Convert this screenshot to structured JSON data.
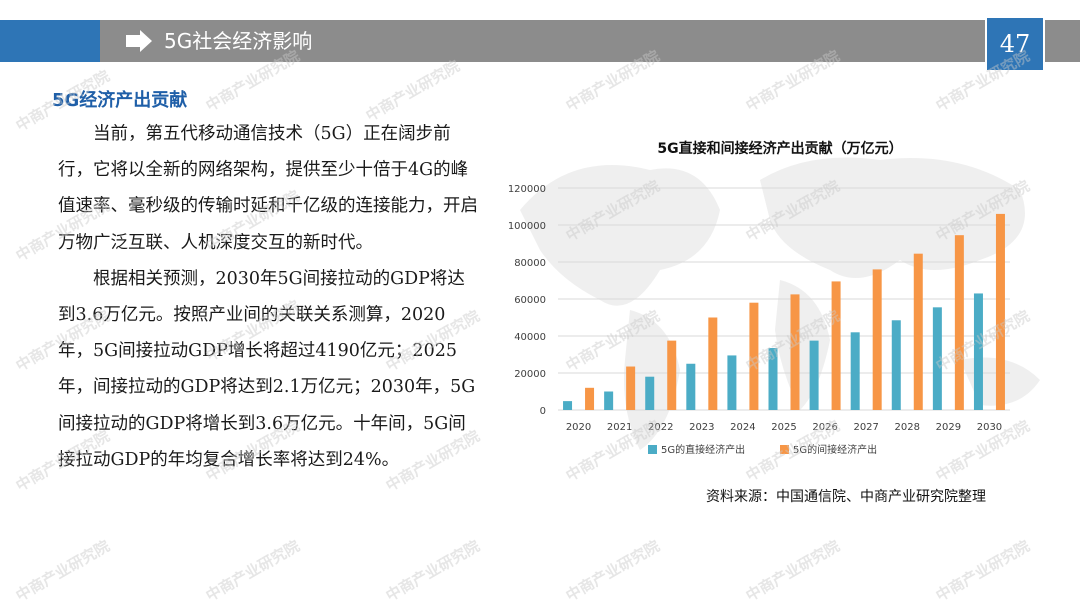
{
  "header": {
    "title": "5G社会经济影响",
    "page_number": "47",
    "arrow_icon": "right-arrow-icon"
  },
  "section": {
    "heading": "5G经济产出贡献"
  },
  "body": {
    "paragraphs": [
      "当前，第五代移动通信技术（5G）正在阔步前行，它将以全新的网络架构，提供至少十倍于4G的峰值速率、毫秒级的传输时延和千亿级的连接能力，开启万物广泛互联、人机深度交互的新时代。",
      "根据相关预测，2030年5G间接拉动的GDP将达到3.6万亿元。按照产业间的关联关系测算，2020年，5G间接拉动GDP增长将超过4190亿元；2025年，间接拉动的GDP将达到2.1万亿元；2030年，5G间接拉动的GDP将增长到3.6万亿元。十年间，5G间接拉动GDP的年均复合增长率将达到24%。"
    ]
  },
  "watermark": "中商产业研究院",
  "source_note": "资料来源：中国通信院、中商产业研究院整理",
  "colors": {
    "header_blue": "#2e75b6",
    "header_gray": "#8c8c8c",
    "series_direct": "#4bacc6",
    "series_indirect": "#f79646"
  },
  "chart_data": {
    "type": "bar",
    "title": "5G直接和间接经济产出贡献（万亿元）",
    "categories": [
      "2020",
      "2021",
      "2022",
      "2023",
      "2024",
      "2025",
      "2026",
      "2027",
      "2028",
      "2029",
      "2030"
    ],
    "series": [
      {
        "name": "5G的直接经济产出",
        "values": [
          4800,
          10000,
          18000,
          25000,
          29500,
          33500,
          37500,
          42000,
          48500,
          55500,
          63000
        ]
      },
      {
        "name": "5G的间接经济产出",
        "values": [
          12000,
          23500,
          37500,
          50000,
          58000,
          62500,
          69500,
          76000,
          84500,
          94500,
          106000
        ]
      }
    ],
    "yticks": [
      "0",
      "20000",
      "40000",
      "60000",
      "80000",
      "100000",
      "120000"
    ],
    "ylim": [
      0,
      120000
    ],
    "grid": true,
    "legend_position": "bottom"
  }
}
